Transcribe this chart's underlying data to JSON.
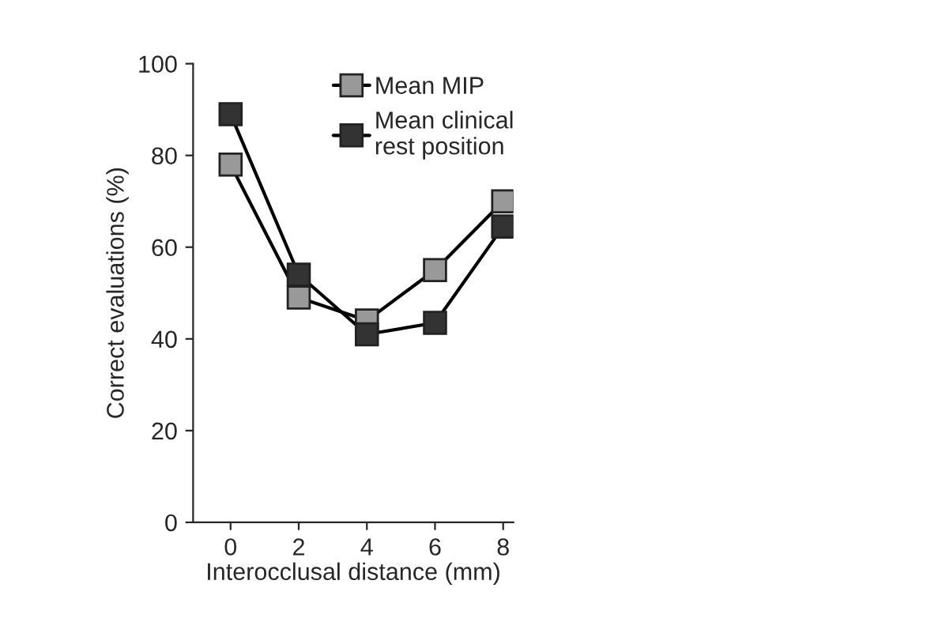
{
  "chart_data": {
    "type": "line",
    "xlabel": "Interocclusal distance (mm)",
    "ylabel": "Correct evaluations (%)",
    "x": [
      0,
      2,
      4,
      6,
      8
    ],
    "series": [
      {
        "name": "Mean MIP",
        "color": "#999999",
        "values": [
          78,
          49,
          44,
          55,
          70
        ]
      },
      {
        "name": "Mean clinical\nrest position",
        "color": "#333333",
        "values": [
          89,
          54,
          41,
          43.5,
          64.5
        ]
      }
    ],
    "xlim": [
      -1.1,
      8.3
    ],
    "xticks": [
      0,
      2,
      4,
      6,
      8
    ],
    "ylim": [
      0,
      100
    ],
    "yticks": [
      0,
      20,
      40,
      60,
      80,
      100
    ],
    "marker": "square",
    "line_style": "solid",
    "grid": false,
    "legend": "top"
  }
}
